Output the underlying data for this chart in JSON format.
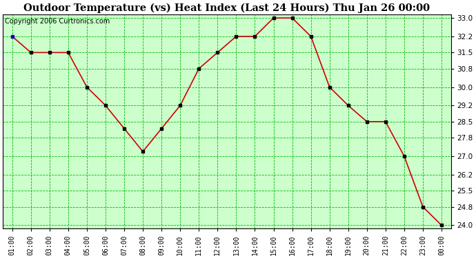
{
  "title": "Outdoor Temperature (vs) Heat Index (Last 24 Hours) Thu Jan 26 00:00",
  "copyright": "Copyright 2006 Curtronics.com",
  "x_labels": [
    "01:00",
    "02:00",
    "03:00",
    "04:00",
    "05:00",
    "06:00",
    "07:00",
    "08:00",
    "09:00",
    "10:00",
    "11:00",
    "12:00",
    "13:00",
    "14:00",
    "15:00",
    "16:00",
    "17:00",
    "18:00",
    "19:00",
    "20:00",
    "21:00",
    "22:00",
    "23:00",
    "00:00"
  ],
  "y_values": [
    32.2,
    31.5,
    31.5,
    31.5,
    30.0,
    29.2,
    28.2,
    27.2,
    28.2,
    29.2,
    30.8,
    31.5,
    32.2,
    32.2,
    33.0,
    33.0,
    32.2,
    30.0,
    29.2,
    28.5,
    28.5,
    27.0,
    24.8,
    24.0
  ],
  "y_ticks": [
    24.0,
    24.8,
    25.5,
    26.2,
    27.0,
    27.8,
    28.5,
    29.2,
    30.0,
    30.8,
    31.5,
    32.2,
    33.0
  ],
  "y_min": 23.85,
  "y_max": 33.15,
  "line_color": "#cc0000",
  "marker_color": "#000000",
  "first_marker_color": "#0000cc",
  "bg_color": "#ccffcc",
  "grid_color": "#00bb00",
  "title_fontsize": 10.5,
  "copyright_fontsize": 7
}
